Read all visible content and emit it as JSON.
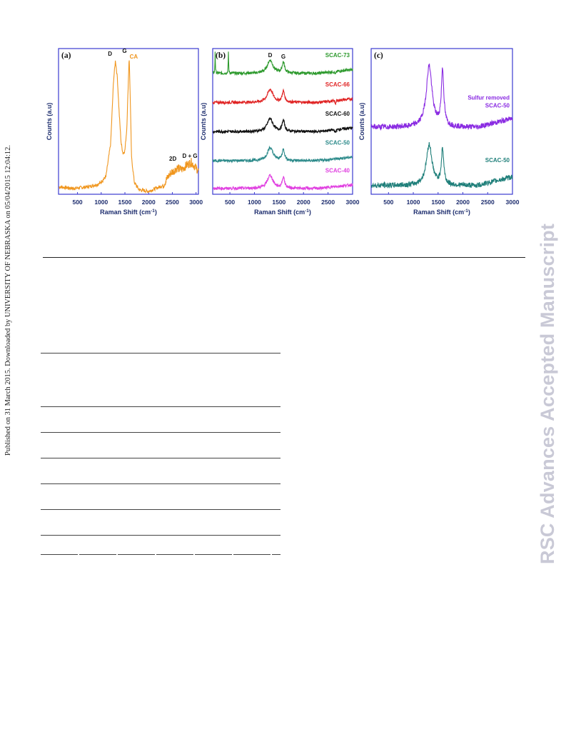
{
  "side_note": "Published on 31 March 2015. Downloaded by UNIVERSITY OF NEBRASKA on 05/04/2015 12:04:12.",
  "watermark": "RSC Advances Accepted Manuscript",
  "chart_data": [
    {
      "type": "line",
      "panel": "(a)",
      "xlabel": "Raman Shift (cm⁻¹)",
      "ylabel": "Counts (a.u)",
      "xlim": [
        100,
        3050
      ],
      "xticks": [
        500,
        1000,
        1500,
        2000,
        2500,
        3000
      ],
      "annotations": [
        "D",
        "G",
        "2D",
        "D + G"
      ],
      "series": [
        {
          "name": "CA",
          "color": "#f0961e",
          "x": [
            150,
            400,
            700,
            950,
            1100,
            1200,
            1260,
            1300,
            1340,
            1380,
            1420,
            1460,
            1500,
            1540,
            1570,
            1590,
            1610,
            1640,
            1700,
            1800,
            2000,
            2300,
            2450,
            2600,
            2700,
            2800,
            2900,
            3000,
            3050
          ],
          "y": [
            0.05,
            0.04,
            0.05,
            0.07,
            0.12,
            0.35,
            0.78,
            0.92,
            0.8,
            0.55,
            0.35,
            0.28,
            0.3,
            0.45,
            0.75,
            0.95,
            0.7,
            0.25,
            0.08,
            0.03,
            0.02,
            0.06,
            0.14,
            0.18,
            0.17,
            0.2,
            0.22,
            0.18,
            0.16
          ]
        }
      ]
    },
    {
      "type": "line",
      "panel": "(b)",
      "xlabel": "Raman Shift (cm⁻¹)",
      "ylabel": "Counts (a.u)",
      "xlim": [
        150,
        3000
      ],
      "xticks": [
        500,
        1000,
        1500,
        2000,
        2500,
        3000
      ],
      "annotations": [
        "D",
        "G"
      ],
      "series": [
        {
          "name": "SCAC-73",
          "color": "#2e9a2e",
          "offset": 0.82,
          "sharp_peaks": [
            200,
            470
          ]
        },
        {
          "name": "SCAC-66",
          "color": "#e02424",
          "offset": 0.62
        },
        {
          "name": "SCAC-60",
          "color": "#111111",
          "offset": 0.42
        },
        {
          "name": "SCAC-50",
          "color": "#2c8a8a",
          "offset": 0.22
        },
        {
          "name": "SCAC-40",
          "color": "#e040e0",
          "offset": 0.03
        }
      ]
    },
    {
      "type": "line",
      "panel": "(c)",
      "xlabel": "Raman Shift (cm⁻¹)",
      "ylabel": "Counts (a.u)",
      "xlim": [
        150,
        3000
      ],
      "xticks": [
        500,
        1000,
        1500,
        2000,
        2500,
        3000
      ],
      "series": [
        {
          "name": "Sulfur removed\nSCAC-50",
          "label_lines": [
            "Sulfur removed",
            "SCAC-50"
          ],
          "color": "#8a2be2",
          "offset": 0.45
        },
        {
          "name": "SCAC-50",
          "label_lines": [
            "SCAC-50"
          ],
          "color": "#1f7f7a",
          "offset": 0.05
        }
      ]
    }
  ]
}
